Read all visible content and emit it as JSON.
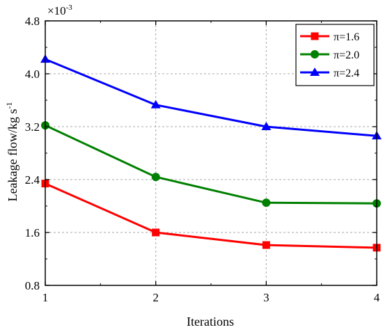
{
  "chart_data": {
    "type": "line",
    "x": [
      1,
      2,
      3,
      4
    ],
    "xlabel": "Iterations",
    "ylabel": "Leakage flow/kg s",
    "ylabel_sup": "-1",
    "y_multiplier": "×10",
    "y_multiplier_exp": "-3",
    "xlim": [
      1,
      4
    ],
    "ylim": [
      0.8,
      4.8
    ],
    "xticks": [
      1,
      2,
      3,
      4
    ],
    "xtick_labels": [
      "1",
      "2",
      "3",
      "4"
    ],
    "yticks": [
      0.8,
      1.6,
      2.4,
      3.2,
      4.0,
      4.8
    ],
    "ytick_labels": [
      "0.8",
      "1.6",
      "2.4",
      "3.2",
      "4.0",
      "4.8"
    ],
    "grid": true,
    "legend_position": "top-right",
    "series": [
      {
        "name": "π=1.6",
        "color": "#ff0000",
        "marker": "square",
        "values": [
          2.34,
          1.6,
          1.41,
          1.37
        ]
      },
      {
        "name": "π=2.0",
        "color": "#008000",
        "marker": "circle",
        "values": [
          3.22,
          2.44,
          2.05,
          2.04
        ]
      },
      {
        "name": "π=2.4",
        "color": "#0000ff",
        "marker": "triangle",
        "values": [
          4.22,
          3.53,
          3.2,
          3.06
        ]
      }
    ]
  }
}
